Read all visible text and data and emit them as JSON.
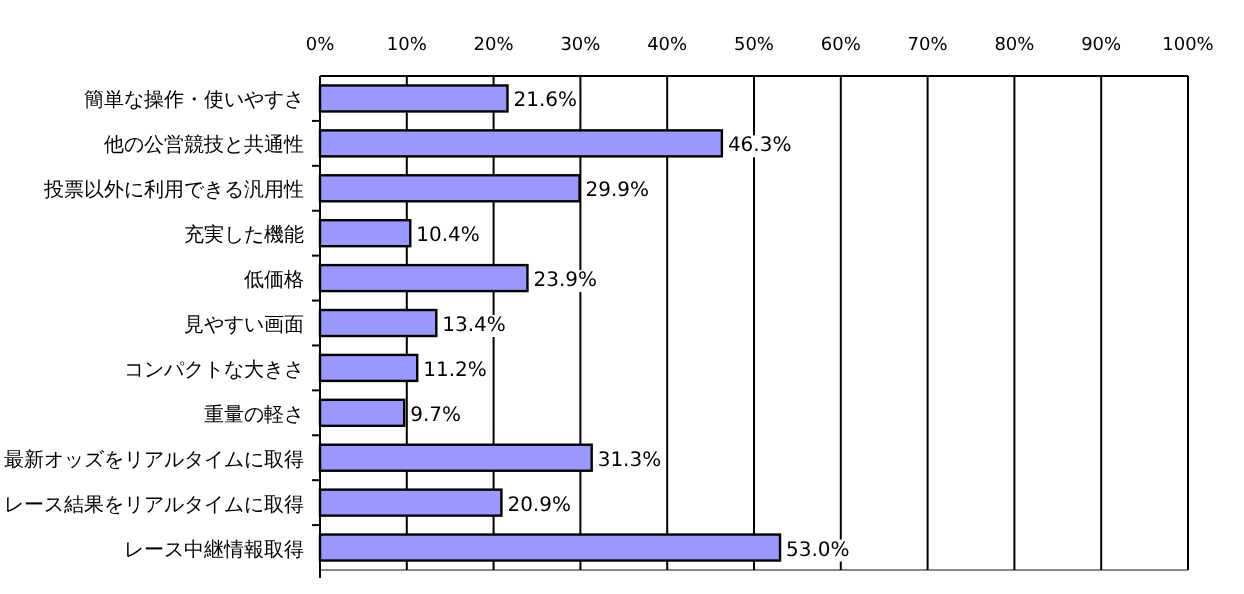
{
  "chart_data": {
    "type": "bar",
    "orientation": "horizontal",
    "color": "#9999ff",
    "grid": "x",
    "categories": [
      "簡単な操作・使いやすさ",
      "他の公営競技と共通性",
      "投票以外に利用できる汎用性",
      "充実した機能",
      "低価格",
      "見やすい画面",
      "コンパクトな大きさ",
      "重量の軽さ",
      "最新オッズをリアルタイムに取得",
      "レース結果をリアルタイムに取得",
      "レース中継情報取得"
    ],
    "values": [
      21.6,
      46.3,
      29.9,
      10.4,
      23.9,
      13.4,
      11.2,
      9.7,
      31.3,
      20.9,
      53.0
    ],
    "value_labels": [
      "21.6%",
      "46.3%",
      "29.9%",
      "10.4%",
      "23.9%",
      "13.4%",
      "11.2%",
      "9.7%",
      "31.3%",
      "20.9%",
      "53.0%"
    ],
    "xlim": [
      0,
      100
    ],
    "xticks": [
      {
        "value": 0,
        "label": "0%"
      },
      {
        "value": 10,
        "label": "10%"
      },
      {
        "value": 20,
        "label": "20%"
      },
      {
        "value": 30,
        "label": "30%"
      },
      {
        "value": 40,
        "label": "40%"
      },
      {
        "value": 50,
        "label": "50%"
      },
      {
        "value": 60,
        "label": "60%"
      },
      {
        "value": 70,
        "label": "70%"
      },
      {
        "value": 80,
        "label": "80%"
      },
      {
        "value": 90,
        "label": "90%"
      },
      {
        "value": 100,
        "label": "100%"
      }
    ]
  }
}
